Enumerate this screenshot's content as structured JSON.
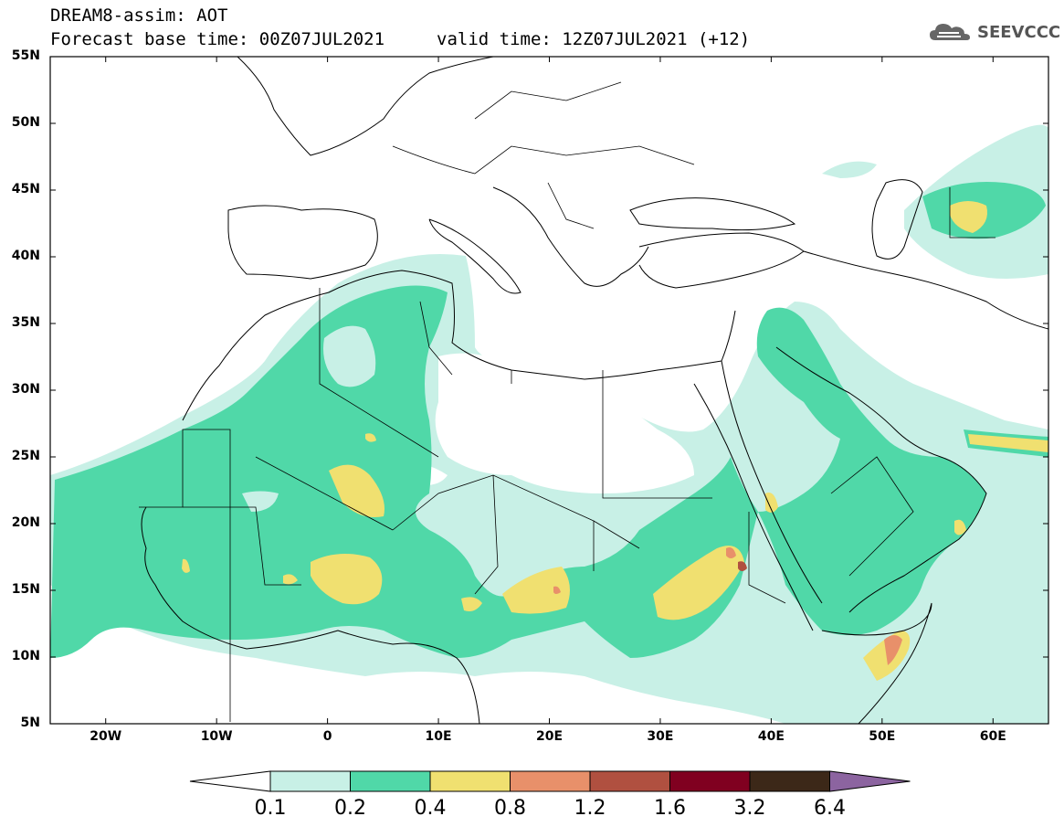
{
  "title": {
    "line1": "DREAM8-assim: AOT",
    "line2": "Forecast base time: 00Z07JUL2021",
    "line2b": "valid time: 12Z07JUL2021 (+12)"
  },
  "logo": {
    "text": "SEEVCCC",
    "icon": "cloud-logo-icon"
  },
  "map": {
    "lat_labels": [
      "55N",
      "50N",
      "45N",
      "40N",
      "35N",
      "30N",
      "25N",
      "20N",
      "15N",
      "10N",
      "5N"
    ],
    "lon_labels": [
      "20W",
      "10W",
      "0",
      "10E",
      "20E",
      "30E",
      "40E",
      "50E",
      "60E"
    ],
    "lat_range": [
      5,
      55
    ],
    "lon_range": [
      -25,
      65
    ]
  },
  "colorbar": {
    "labels": [
      "0.1",
      "0.2",
      "0.4",
      "0.8",
      "1.2",
      "1.6",
      "3.2",
      "6.4"
    ],
    "colors": [
      "#ffffff",
      "#c8f0e6",
      "#50d8a8",
      "#f0e070",
      "#e8906a",
      "#b05040",
      "#800020",
      "#3c2818",
      "#8c64a0"
    ]
  },
  "colors": {
    "level1": "#c8f0e6",
    "level2": "#50d8a8",
    "level3": "#f0e070",
    "level4": "#e8906a",
    "level5": "#b05040"
  }
}
